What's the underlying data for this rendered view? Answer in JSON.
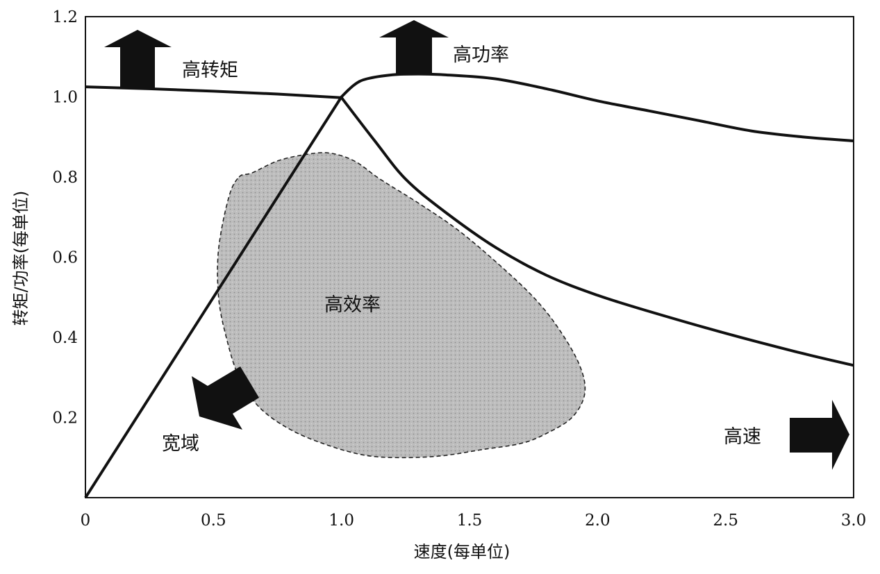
{
  "chart_data": {
    "type": "line",
    "xlabel": "速度(每单位)",
    "ylabel": "转矩/功率(每单位)",
    "xlim": [
      0,
      3.0
    ],
    "ylim": [
      0,
      1.2
    ],
    "x_ticks": [
      "0",
      "0.5",
      "1.0",
      "1.5",
      "2.0",
      "2.5",
      "3.0"
    ],
    "y_ticks": [
      "0.2",
      "0.4",
      "0.6",
      "0.8",
      "1.0",
      "1.2"
    ],
    "grid": false,
    "series": [
      {
        "role": "torque",
        "x": [
          0,
          0.25,
          0.5,
          0.75,
          1.0,
          1.13,
          1.25,
          1.4,
          1.6,
          1.8,
          2.0,
          2.2,
          2.5,
          2.8,
          3.0
        ],
        "y": [
          1.025,
          1.02,
          1.014,
          1.007,
          0.998,
          0.89,
          0.795,
          0.715,
          0.625,
          0.555,
          0.505,
          0.465,
          0.41,
          0.36,
          0.33
        ]
      },
      {
        "role": "power",
        "x": [
          0,
          0.5,
          1.0,
          1.05,
          1.1,
          1.2,
          1.3,
          1.4,
          1.6,
          1.8,
          2.0,
          2.2,
          2.4,
          2.6,
          2.8,
          3.0
        ],
        "y": [
          0,
          0.5,
          1.0,
          1.03,
          1.045,
          1.055,
          1.057,
          1.055,
          1.045,
          1.02,
          0.99,
          0.965,
          0.94,
          0.915,
          0.9,
          0.89
        ]
      }
    ],
    "region": {
      "label": "高效率",
      "x": [
        0.6,
        0.65,
        0.75,
        0.85,
        0.95,
        1.05,
        1.15,
        1.3,
        1.45,
        1.6,
        1.75,
        1.85,
        1.93,
        1.95,
        1.9,
        1.8,
        1.7,
        1.55,
        1.4,
        1.25,
        1.1,
        0.95,
        0.8,
        0.68,
        0.6,
        0.55,
        0.52,
        0.52,
        0.56
      ],
      "y": [
        0.8,
        0.81,
        0.84,
        0.855,
        0.86,
        0.84,
        0.795,
        0.735,
        0.67,
        0.59,
        0.5,
        0.42,
        0.33,
        0.26,
        0.2,
        0.16,
        0.135,
        0.12,
        0.105,
        0.1,
        0.105,
        0.13,
        0.17,
        0.225,
        0.3,
        0.4,
        0.5,
        0.62,
        0.75
      ]
    },
    "annotations": [
      {
        "text": "高转矩",
        "direction": "up"
      },
      {
        "text": "高功率",
        "direction": "up"
      },
      {
        "text": "宽域",
        "direction": "down-left"
      },
      {
        "text": "高速",
        "direction": "right"
      }
    ]
  }
}
